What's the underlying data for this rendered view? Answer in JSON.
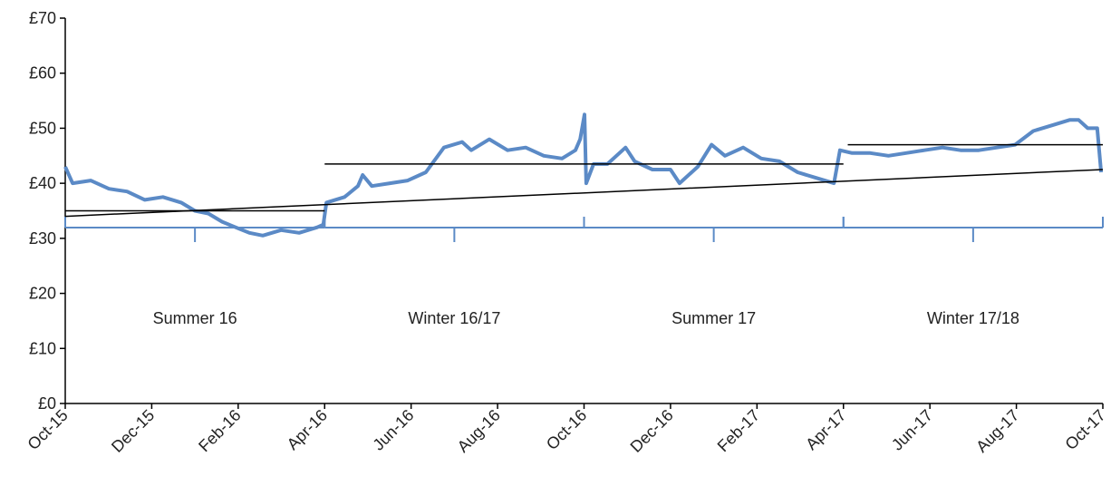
{
  "chart_data": {
    "type": "line",
    "xlim": [
      0,
      24
    ],
    "xticks": [
      {
        "value": 0,
        "label": "Oct-15"
      },
      {
        "value": 2,
        "label": "Dec-15"
      },
      {
        "value": 4,
        "label": "Feb-16"
      },
      {
        "value": 6,
        "label": "Apr-16"
      },
      {
        "value": 8,
        "label": "Jun-16"
      },
      {
        "value": 10,
        "label": "Aug-16"
      },
      {
        "value": 12,
        "label": "Oct-16"
      },
      {
        "value": 14,
        "label": "Dec-16"
      },
      {
        "value": 16,
        "label": "Feb-17"
      },
      {
        "value": 18,
        "label": "Apr-17"
      },
      {
        "value": 20,
        "label": "Jun-17"
      },
      {
        "value": 22,
        "label": "Aug-17"
      },
      {
        "value": 24,
        "label": "Oct-17"
      }
    ],
    "ylim": [
      0,
      70
    ],
    "yticks": [
      {
        "value": 0,
        "label": "£0"
      },
      {
        "value": 10,
        "label": "£10"
      },
      {
        "value": 20,
        "label": "£20"
      },
      {
        "value": 30,
        "label": "£30"
      },
      {
        "value": 40,
        "label": "£40"
      },
      {
        "value": 50,
        "label": "£50"
      },
      {
        "value": 60,
        "label": "£60"
      },
      {
        "value": 70,
        "label": "£70"
      }
    ],
    "series": [
      {
        "color": "#5b8ac6",
        "x": [
          0,
          0.17,
          0.59,
          1.01,
          1.43,
          1.84,
          2.26,
          2.68,
          3.0,
          3.31,
          3.63,
          3.94,
          4.26,
          4.57,
          4.99,
          5.41,
          5.83,
          5.97,
          6.04,
          6.46,
          6.77,
          6.88,
          7.09,
          7.51,
          7.92,
          8.34,
          8.76,
          9.18,
          9.39,
          9.81,
          10.23,
          10.65,
          11.07,
          11.49,
          11.8,
          11.91,
          12.01,
          12.05,
          12.22,
          12.54,
          12.96,
          13.17,
          13.58,
          14.0,
          14.21,
          14.63,
          14.95,
          15.26,
          15.68,
          16.1,
          16.52,
          16.94,
          17.36,
          17.78,
          17.92,
          18.2,
          18.62,
          19.04,
          19.45,
          19.87,
          20.29,
          20.71,
          21.13,
          21.55,
          21.97,
          22.39,
          22.81,
          23.23,
          23.44,
          23.65,
          23.87,
          23.96
        ],
        "values": [
          43,
          40,
          40.5,
          39,
          38.5,
          37,
          37.5,
          36.5,
          35,
          34.5,
          33,
          32,
          31,
          30.5,
          31.5,
          31,
          32,
          32.5,
          36.5,
          37.5,
          39.5,
          41.5,
          39.5,
          40,
          40.5,
          42,
          46.5,
          47.5,
          46,
          48,
          46,
          46.5,
          45,
          44.5,
          46,
          48,
          52.5,
          40,
          43.5,
          43.5,
          46.5,
          44,
          42.5,
          42.5,
          40,
          43,
          47,
          45,
          46.5,
          44.5,
          44,
          42,
          41,
          40,
          46,
          45.5,
          45.5,
          45,
          45.5,
          46,
          46.5,
          46,
          46,
          46.5,
          47,
          49.5,
          50.5,
          51.5,
          51.5,
          50,
          50,
          42
        ]
      }
    ],
    "lines": [
      {
        "x": [
          0,
          6
        ],
        "values": [
          35,
          35
        ]
      },
      {
        "x": [
          6,
          18
        ],
        "values": [
          43.5,
          43.5
        ]
      },
      {
        "x": [
          18.1,
          24
        ],
        "values": [
          47,
          47
        ]
      },
      {
        "x": [
          0,
          24
        ],
        "values": [
          34,
          42.5
        ]
      }
    ],
    "periods": [
      {
        "label": "Summer 16",
        "start": 0,
        "end": 6
      },
      {
        "label": "Winter 16/17",
        "start": 6,
        "end": 12
      },
      {
        "label": "Summer 17",
        "start": 12,
        "end": 18
      },
      {
        "label": "Winter 17/18",
        "start": 18,
        "end": 24
      }
    ]
  }
}
